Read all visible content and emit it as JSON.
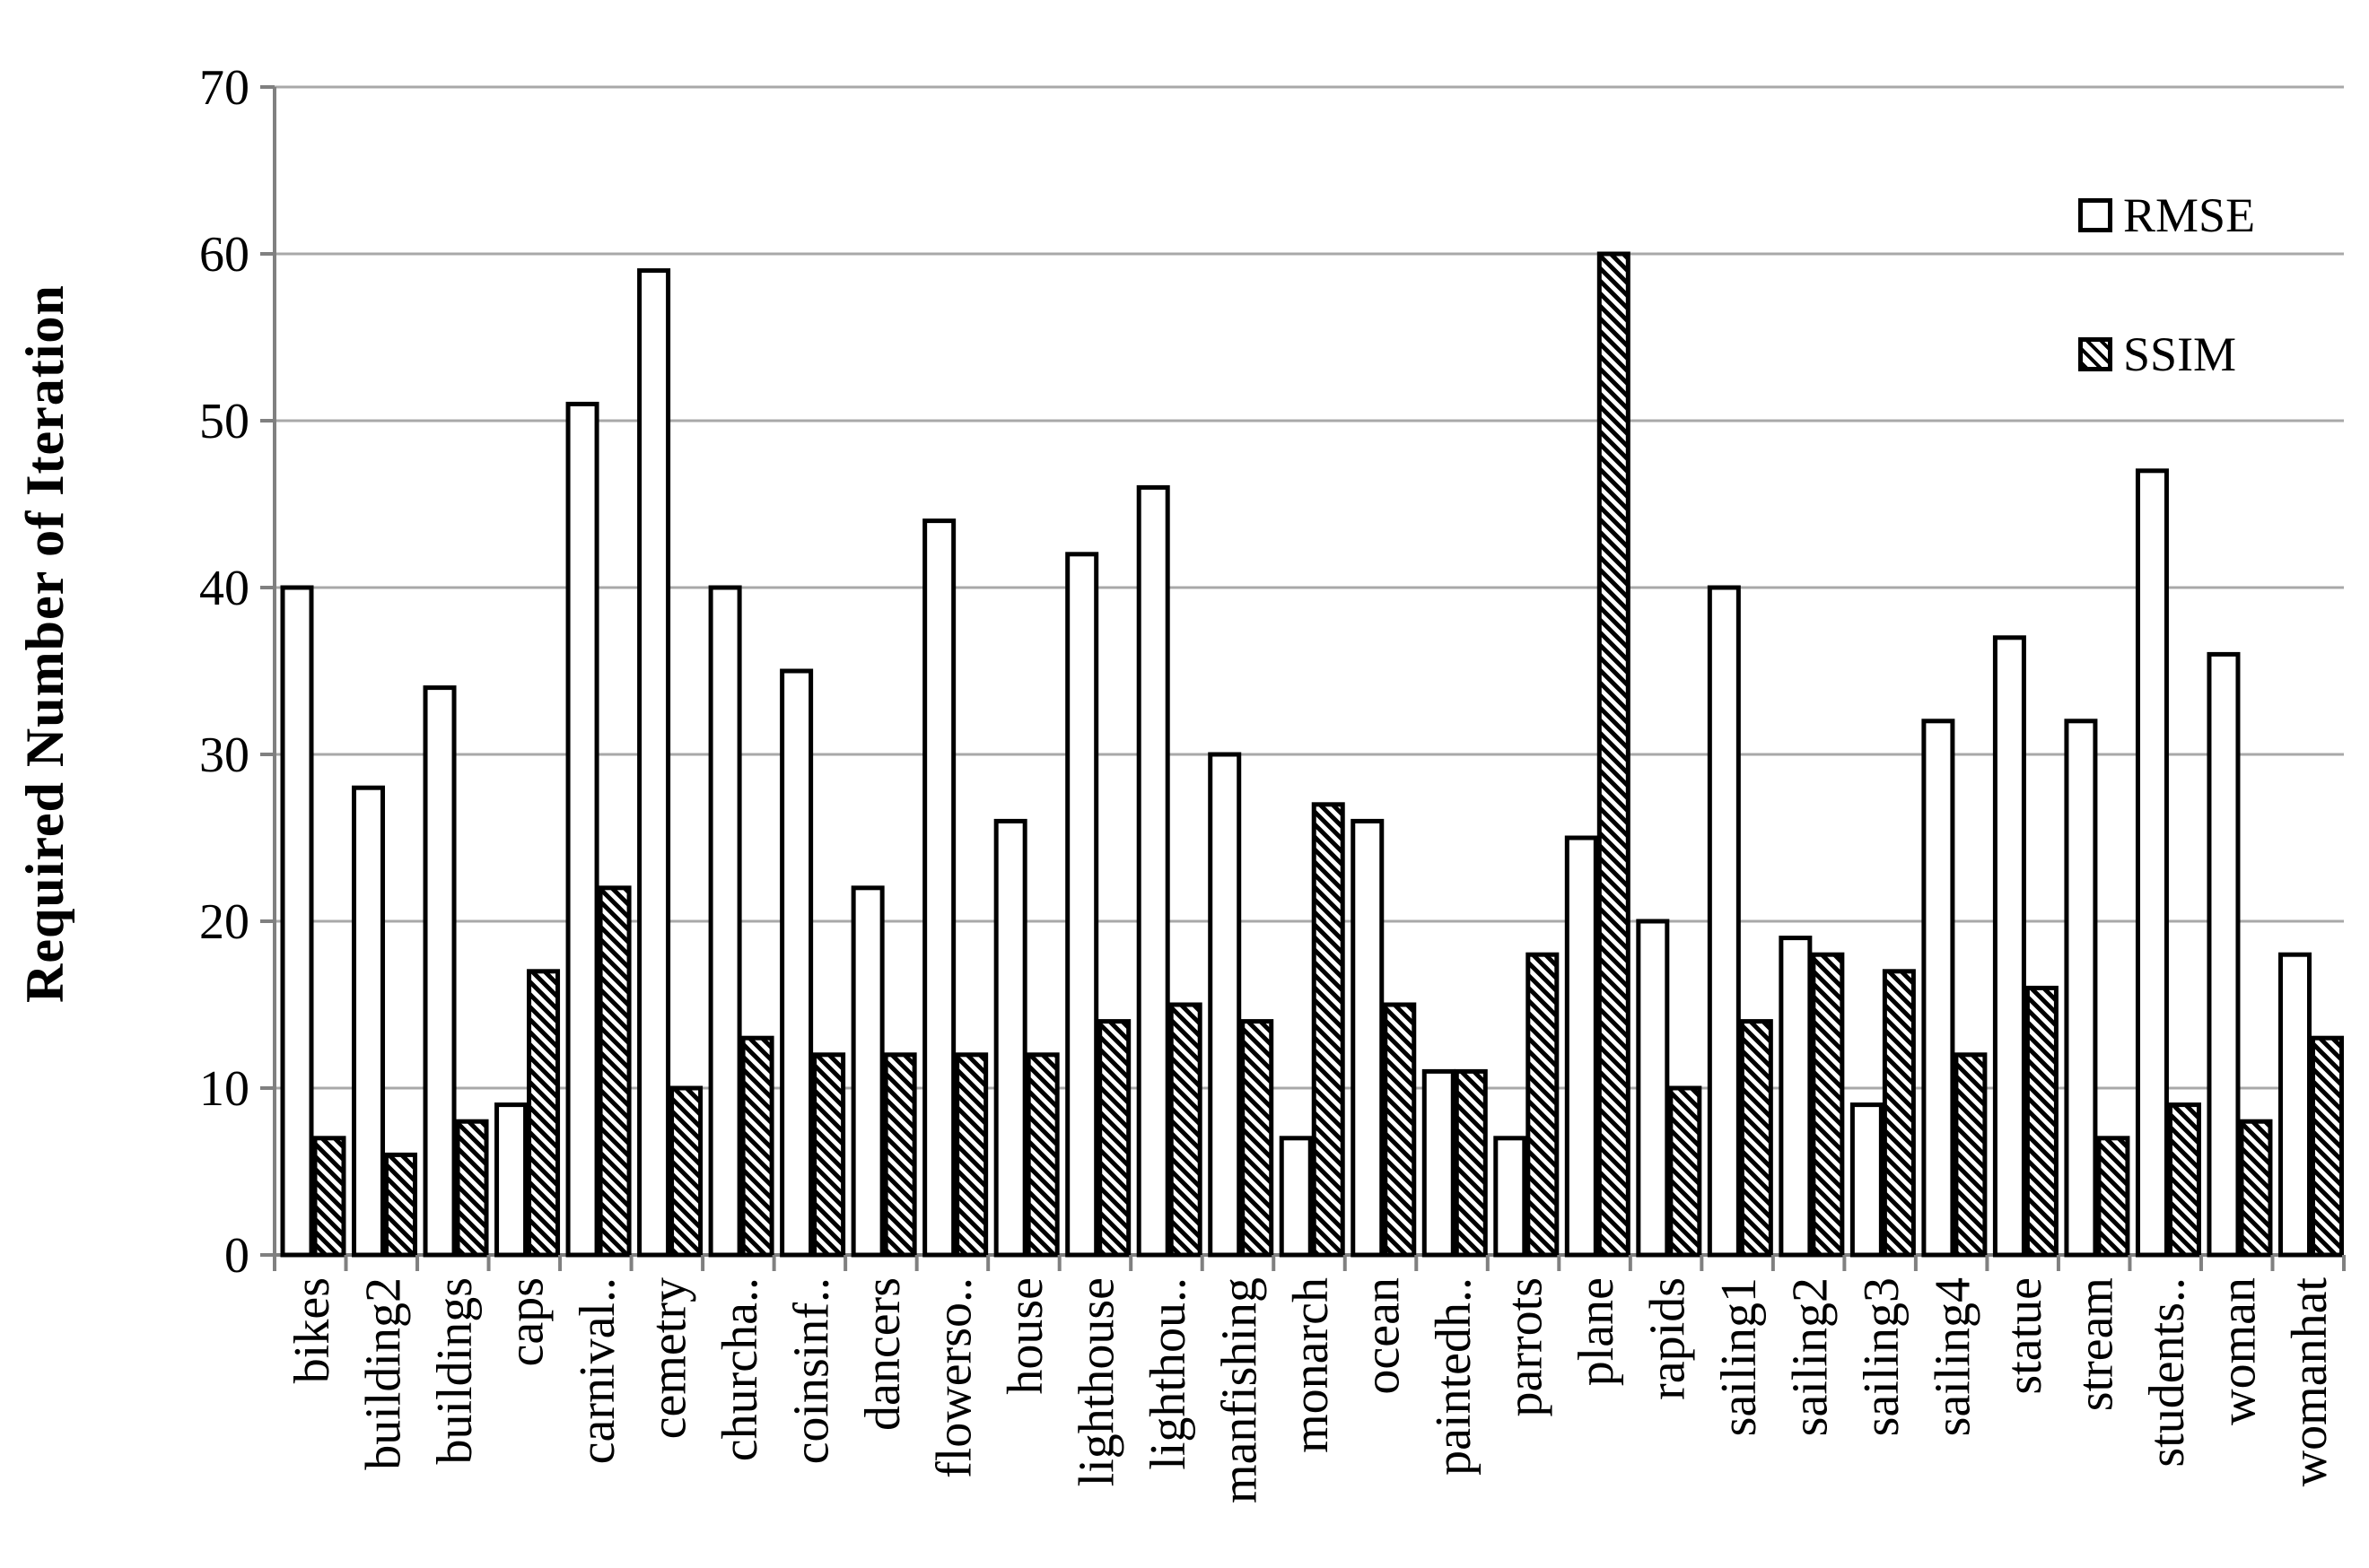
{
  "chart_data": {
    "type": "bar",
    "title": "",
    "xlabel": "",
    "ylabel": "Required Number of Iteration",
    "ylim": [
      0,
      70
    ],
    "yticks": [
      0,
      10,
      20,
      30,
      40,
      50,
      60,
      70
    ],
    "grid": true,
    "legend_position": "upper-right",
    "categories": [
      "bikes",
      "building2",
      "buildings",
      "caps",
      "carnival..",
      "cemetry",
      "churcha..",
      "coinsinf..",
      "dancers",
      "flowerso..",
      "house",
      "lighthouse",
      "lighthou..",
      "manfishing",
      "monarch",
      "ocean",
      "paintedh..",
      "parrots",
      "plane",
      "rapids",
      "sailing1",
      "sailing2",
      "sailing3",
      "sailing4",
      "statue",
      "stream",
      "students..",
      "woman",
      "womanhat"
    ],
    "series": [
      {
        "name": "RMSE",
        "pattern": "solid-white",
        "values": [
          40,
          28,
          34,
          9,
          51,
          59,
          40,
          35,
          22,
          44,
          26,
          42,
          46,
          30,
          7,
          26,
          11,
          7,
          25,
          20,
          40,
          19,
          9,
          32,
          37,
          32,
          47,
          36,
          18
        ]
      },
      {
        "name": "SSIM",
        "pattern": "diagonal-hatch",
        "values": [
          7,
          6,
          8,
          17,
          22,
          10,
          13,
          12,
          12,
          12,
          12,
          14,
          15,
          14,
          27,
          15,
          11,
          18,
          60,
          10,
          14,
          18,
          17,
          12,
          16,
          7,
          9,
          8,
          13
        ]
      }
    ],
    "colors": {
      "background": "#ffffff",
      "bar_stroke": "#000000",
      "bar_fill": "#ffffff",
      "gridline": "#a8a8a8",
      "axis": "#808080",
      "text": "#000000"
    }
  }
}
